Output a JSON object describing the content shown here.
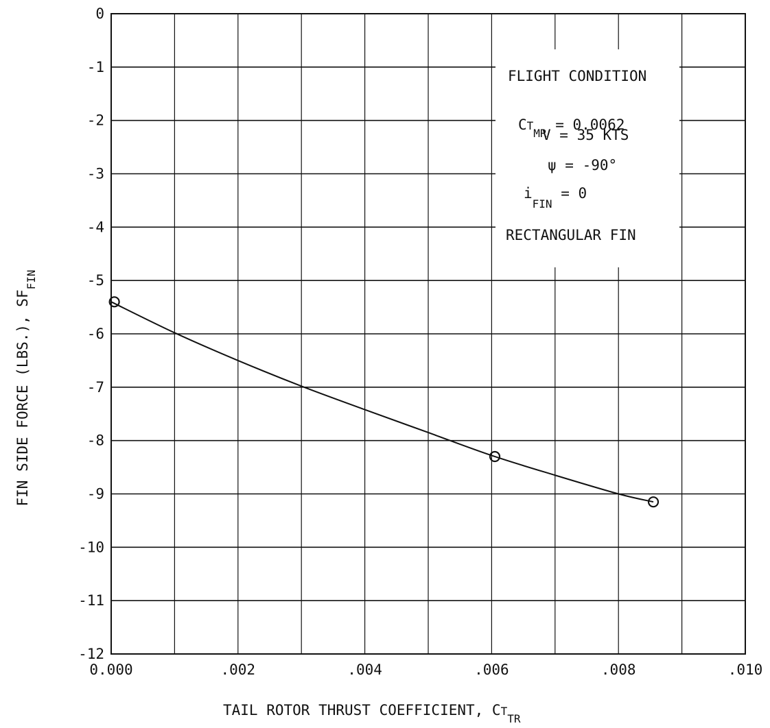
{
  "chart_data": {
    "type": "line",
    "xlabel": "TAIL ROTOR THRUST COEFFICIENT, C",
    "xlabel_sub1": "T",
    "xlabel_sub2": "TR",
    "ylabel": "FIN SIDE FORCE (LBS.), SF",
    "ylabel_sub": "FIN",
    "xlim": [
      0.0,
      0.01
    ],
    "ylim": [
      -12,
      0
    ],
    "x_ticks": [
      {
        "value": 0.0,
        "label": "0.000"
      },
      {
        "value": 0.002,
        "label": ".002"
      },
      {
        "value": 0.004,
        "label": ".004"
      },
      {
        "value": 0.006,
        "label": ".006"
      },
      {
        "value": 0.008,
        "label": ".008"
      },
      {
        "value": 0.01,
        "label": ".010"
      }
    ],
    "y_ticks": [
      {
        "value": 0,
        "label": "0"
      },
      {
        "value": -1,
        "label": "-1"
      },
      {
        "value": -2,
        "label": "-2"
      },
      {
        "value": -3,
        "label": "-3"
      },
      {
        "value": -4,
        "label": "-4"
      },
      {
        "value": -5,
        "label": "-5"
      },
      {
        "value": -6,
        "label": "-6"
      },
      {
        "value": -7,
        "label": "-7"
      },
      {
        "value": -8,
        "label": "-8"
      },
      {
        "value": -9,
        "label": "-9"
      },
      {
        "value": -10,
        "label": "-10"
      },
      {
        "value": -11,
        "label": "-11"
      },
      {
        "value": -12,
        "label": "-12"
      }
    ],
    "grid": true,
    "series": [
      {
        "points": [
          {
            "x": 5e-05,
            "y": -5.4
          },
          {
            "x": 0.00605,
            "y": -8.3
          },
          {
            "x": 0.00855,
            "y": -9.15
          }
        ],
        "marker": "circle"
      }
    ],
    "fit_curve": {
      "x": [
        0.0,
        0.001,
        0.002,
        0.003,
        0.004,
        0.005,
        0.006,
        0.007,
        0.008,
        0.00855
      ],
      "y": [
        -5.4,
        -5.98,
        -6.5,
        -6.98,
        -7.42,
        -7.85,
        -8.28,
        -8.65,
        -9.0,
        -9.15
      ]
    },
    "annotation": {
      "title": "FLIGHT CONDITION",
      "ct_sym": "C",
      "ct_sub1": "T",
      "ct_sub2": "MR",
      "ct_eq": " = 0.0062",
      "v_line": "V = 35 KTS",
      "psi_line": "ψ = -90°",
      "ifin_sym": "i",
      "ifin_sub": "FIN",
      "ifin_eq": " = 0",
      "fin_type": "RECTANGULAR FIN"
    }
  }
}
